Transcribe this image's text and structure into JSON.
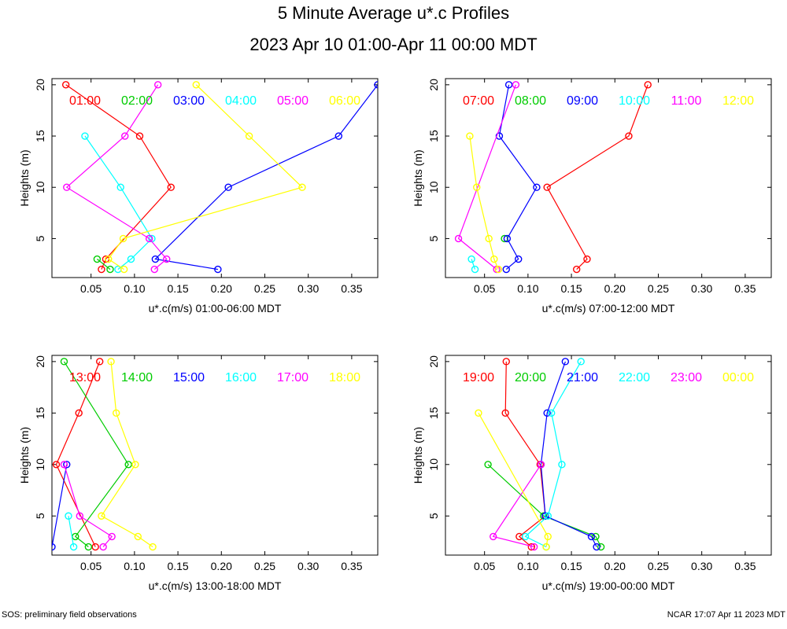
{
  "title": "5 Minute Average u*.c Profiles",
  "subtitle": "2023 Apr 10 01:00-Apr 11 00:00 MDT",
  "footer_left": "SOS: preliminary field observations",
  "footer_right": "NCAR 17:07 Apr 11 2023 MDT",
  "series_colors": [
    "#ff0000",
    "#00cc00",
    "#0000ff",
    "#00ffff",
    "#ff00ff",
    "#ffff00"
  ],
  "chart_data": [
    {
      "type": "line",
      "xlabel": "u*.c(m/s) 01:00-06:00 MDT",
      "ylabel": "Heights (m)",
      "xlim": [
        0.005,
        0.38
      ],
      "ylim": [
        1.2,
        20.6
      ],
      "xticks": [
        0.05,
        0.1,
        0.15,
        0.2,
        0.25,
        0.3,
        0.35
      ],
      "yticks": [
        5,
        10,
        15,
        20
      ],
      "series": [
        {
          "name": "01:00",
          "points": [
            [
              0.062,
              2
            ],
            [
              0.067,
              3
            ],
            [
              0.142,
              10
            ],
            [
              0.106,
              15
            ],
            [
              0.021,
              20
            ]
          ]
        },
        {
          "name": "02:00",
          "points": [
            [
              0.072,
              2
            ],
            [
              0.057,
              3
            ]
          ]
        },
        {
          "name": "03:00",
          "points": [
            [
              0.196,
              2
            ],
            [
              0.124,
              3
            ],
            [
              0.208,
              10
            ],
            [
              0.335,
              15
            ],
            [
              0.38,
              20
            ]
          ]
        },
        {
          "name": "04:00",
          "points": [
            [
              0.081,
              2
            ],
            [
              0.096,
              3
            ],
            [
              0.12,
              5
            ],
            [
              0.084,
              10
            ],
            [
              0.043,
              15
            ]
          ]
        },
        {
          "name": "05:00",
          "points": [
            [
              0.123,
              2
            ],
            [
              0.137,
              3
            ],
            [
              0.117,
              5
            ],
            [
              0.022,
              10
            ],
            [
              0.089,
              15
            ],
            [
              0.127,
              20
            ]
          ]
        },
        {
          "name": "06:00",
          "points": [
            [
              0.088,
              2
            ],
            [
              0.07,
              3
            ],
            [
              0.087,
              5
            ],
            [
              0.293,
              10
            ],
            [
              0.232,
              15
            ],
            [
              0.171,
              20
            ]
          ]
        }
      ]
    },
    {
      "type": "line",
      "xlabel": "u*.c(m/s) 07:00-12:00 MDT",
      "ylabel": "Heights (m)",
      "xlim": [
        0.005,
        0.38
      ],
      "ylim": [
        1.2,
        20.6
      ],
      "xticks": [
        0.05,
        0.1,
        0.15,
        0.2,
        0.25,
        0.3,
        0.35
      ],
      "yticks": [
        5,
        10,
        15,
        20
      ],
      "series": [
        {
          "name": "07:00",
          "points": [
            [
              0.156,
              2
            ],
            [
              0.168,
              3
            ],
            [
              0.122,
              10
            ],
            [
              0.216,
              15
            ],
            [
              0.238,
              20
            ]
          ]
        },
        {
          "name": "08:00",
          "points": [
            [
              0.073,
              5
            ]
          ]
        },
        {
          "name": "09:00",
          "points": [
            [
              0.075,
              2
            ],
            [
              0.089,
              3
            ],
            [
              0.076,
              5
            ],
            [
              0.11,
              10
            ],
            [
              0.067,
              15
            ],
            [
              0.078,
              20
            ]
          ]
        },
        {
          "name": "10:00",
          "points": [
            [
              0.039,
              2
            ],
            [
              0.035,
              3
            ]
          ]
        },
        {
          "name": "11:00",
          "points": [
            [
              0.064,
              2
            ],
            [
              0.02,
              5
            ],
            [
              0.086,
              20
            ]
          ]
        },
        {
          "name": "12:00",
          "points": [
            [
              0.066,
              2
            ],
            [
              0.061,
              3
            ],
            [
              0.055,
              5
            ],
            [
              0.041,
              10
            ],
            [
              0.033,
              15
            ]
          ]
        }
      ]
    },
    {
      "type": "line",
      "xlabel": "u*.c(m/s) 13:00-18:00 MDT",
      "ylabel": "Heights (m)",
      "xlim": [
        0.005,
        0.38
      ],
      "ylim": [
        1.2,
        20.6
      ],
      "xticks": [
        0.05,
        0.1,
        0.15,
        0.2,
        0.25,
        0.3,
        0.35
      ],
      "yticks": [
        5,
        10,
        15,
        20
      ],
      "series": [
        {
          "name": "13:00",
          "points": [
            [
              0.055,
              2
            ],
            [
              0.01,
              10
            ],
            [
              0.036,
              15
            ],
            [
              0.06,
              20
            ]
          ]
        },
        {
          "name": "14:00",
          "points": [
            [
              0.047,
              2
            ],
            [
              0.032,
              3
            ],
            [
              0.093,
              10
            ],
            [
              0.019,
              20
            ]
          ]
        },
        {
          "name": "15:00",
          "points": [
            [
              0.005,
              2
            ],
            [
              0.022,
              10
            ]
          ]
        },
        {
          "name": "16:00",
          "points": [
            [
              0.03,
              2
            ],
            [
              0.024,
              5
            ]
          ]
        },
        {
          "name": "17:00",
          "points": [
            [
              0.064,
              2
            ],
            [
              0.074,
              3
            ],
            [
              0.037,
              5
            ],
            [
              0.019,
              10
            ]
          ]
        },
        {
          "name": "18:00",
          "points": [
            [
              0.121,
              2
            ],
            [
              0.104,
              3
            ],
            [
              0.062,
              5
            ],
            [
              0.101,
              10
            ],
            [
              0.079,
              15
            ],
            [
              0.073,
              20
            ]
          ]
        }
      ]
    },
    {
      "type": "line",
      "xlabel": "u*.c(m/s) 19:00-00:00 MDT",
      "ylabel": "Heights (m)",
      "xlim": [
        0.005,
        0.38
      ],
      "ylim": [
        1.2,
        20.6
      ],
      "xticks": [
        0.05,
        0.1,
        0.15,
        0.2,
        0.25,
        0.3,
        0.35
      ],
      "yticks": [
        5,
        10,
        15,
        20
      ],
      "series": [
        {
          "name": "19:00",
          "points": [
            [
              0.104,
              2
            ],
            [
              0.09,
              3
            ],
            [
              0.12,
              5
            ],
            [
              0.114,
              10
            ],
            [
              0.074,
              15
            ],
            [
              0.075,
              20
            ]
          ]
        },
        {
          "name": "20:00",
          "points": [
            [
              0.184,
              2
            ],
            [
              0.178,
              3
            ],
            [
              0.118,
              5
            ],
            [
              0.054,
              10
            ]
          ]
        },
        {
          "name": "21:00",
          "points": [
            [
              0.179,
              2
            ],
            [
              0.173,
              3
            ],
            [
              0.12,
              5
            ],
            [
              0.115,
              10
            ],
            [
              0.122,
              15
            ],
            [
              0.143,
              20
            ]
          ]
        },
        {
          "name": "22:00",
          "points": [
            [
              0.121,
              2
            ],
            [
              0.097,
              3
            ],
            [
              0.123,
              5
            ],
            [
              0.139,
              10
            ],
            [
              0.127,
              15
            ],
            [
              0.161,
              20
            ]
          ]
        },
        {
          "name": "23:00",
          "points": [
            [
              0.107,
              2
            ],
            [
              0.06,
              3
            ],
            [
              0.115,
              10
            ]
          ]
        },
        {
          "name": "00:00",
          "points": [
            [
              0.121,
              2
            ],
            [
              0.123,
              3
            ],
            [
              0.043,
              15
            ]
          ]
        }
      ]
    }
  ]
}
